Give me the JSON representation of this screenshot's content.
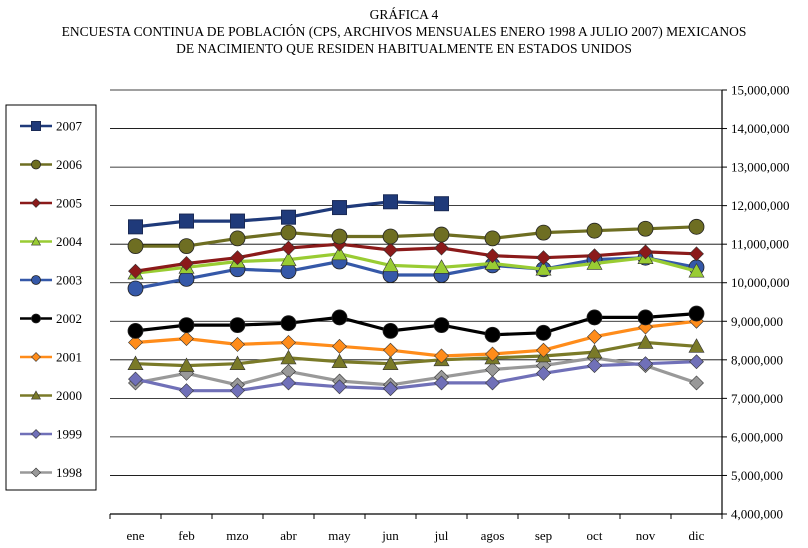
{
  "chart_data": {
    "type": "line",
    "title_lines": [
      "GRÁFICA 4",
      "ENCUESTA  CONTINUA DE POBLACIÓN (CPS, ARCHIVOS MENSUALES ENERO 1998 A JULIO 2007) MEXICANOS",
      "DE NACIMIENTO QUE RESIDEN HABITUALMENTE EN ESTADOS UNIDOS"
    ],
    "categories": [
      "ene",
      "feb",
      "mzo",
      "abr",
      "may",
      "jun",
      "jul",
      "agos",
      "sep",
      "oct",
      "nov",
      "dic"
    ],
    "y_axis_side": "right",
    "ylim": [
      4000000,
      15000000
    ],
    "y_ticks": [
      4000000,
      5000000,
      6000000,
      7000000,
      8000000,
      9000000,
      10000000,
      11000000,
      12000000,
      13000000,
      14000000,
      15000000
    ],
    "y_tick_labels": [
      "4,000,000",
      "5,000,000",
      "6,000,000",
      "7,000,000",
      "8,000,000",
      "9,000,000",
      "10,000,000",
      "11,000,000",
      "12,000,000",
      "13,000,000",
      "14,000,000",
      "15,000,000"
    ],
    "gridlines": true,
    "legend_position": "left",
    "series": [
      {
        "name": "2007",
        "color": "#1f3a7a",
        "marker": "square",
        "values": [
          11450000,
          11600000,
          11600000,
          11700000,
          11950000,
          12100000,
          12050000,
          null,
          null,
          null,
          null,
          null
        ]
      },
      {
        "name": "2006",
        "color": "#6e6e22",
        "marker": "circle",
        "values": [
          10950000,
          10950000,
          11150000,
          11300000,
          11200000,
          11200000,
          11250000,
          11150000,
          11300000,
          11350000,
          11400000,
          11450000
        ]
      },
      {
        "name": "2005",
        "color": "#8b1a1a",
        "marker": "diamond",
        "values": [
          10300000,
          10500000,
          10650000,
          10900000,
          11000000,
          10850000,
          10900000,
          10700000,
          10650000,
          10700000,
          10800000,
          10750000
        ]
      },
      {
        "name": "2004",
        "color": "#99cc33",
        "marker": "triangle",
        "values": [
          10250000,
          10400000,
          10550000,
          10600000,
          10750000,
          10450000,
          10400000,
          10500000,
          10350000,
          10500000,
          10650000,
          10300000
        ]
      },
      {
        "name": "2003",
        "color": "#3558a8",
        "marker": "circle",
        "values": [
          9850000,
          10100000,
          10350000,
          10300000,
          10550000,
          10200000,
          10200000,
          10450000,
          10350000,
          10600000,
          10650000,
          10400000
        ]
      },
      {
        "name": "2002",
        "color": "#000000",
        "marker": "circle",
        "values": [
          8750000,
          8900000,
          8900000,
          8950000,
          9100000,
          8750000,
          8900000,
          8650000,
          8700000,
          9100000,
          9100000,
          9200000
        ]
      },
      {
        "name": "2001",
        "color": "#ff8c1a",
        "marker": "diamond",
        "values": [
          8450000,
          8550000,
          8400000,
          8450000,
          8350000,
          8250000,
          8100000,
          8150000,
          8250000,
          8600000,
          8850000,
          9000000
        ]
      },
      {
        "name": "2000",
        "color": "#7a7a28",
        "marker": "triangle",
        "values": [
          7900000,
          7850000,
          7900000,
          8050000,
          7950000,
          7900000,
          8000000,
          8050000,
          8100000,
          8200000,
          8450000,
          8350000
        ]
      },
      {
        "name": "1999",
        "color": "#7070b8",
        "marker": "diamond",
        "values": [
          7500000,
          7200000,
          7200000,
          7400000,
          7300000,
          7250000,
          7400000,
          7400000,
          7650000,
          7850000,
          7900000,
          7950000
        ]
      },
      {
        "name": "1998",
        "color": "#999999",
        "marker": "diamond",
        "values": [
          7400000,
          7650000,
          7350000,
          7700000,
          7450000,
          7350000,
          7550000,
          7750000,
          7850000,
          8050000,
          7850000,
          7400000
        ]
      }
    ]
  }
}
